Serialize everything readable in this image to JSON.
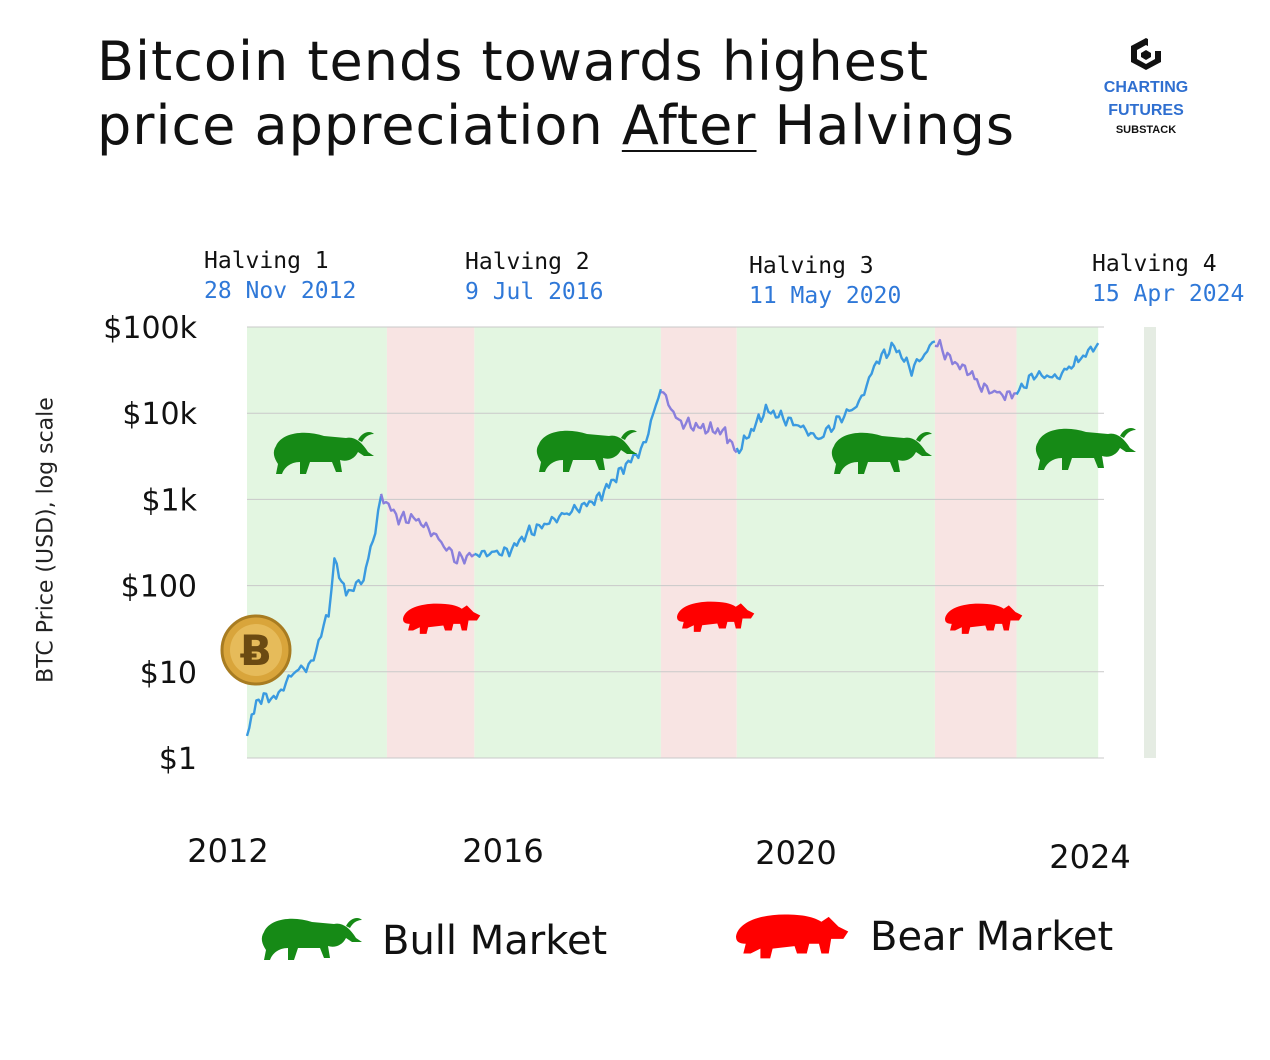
{
  "title": {
    "line1": "Bitcoin tends towards highest",
    "line2_pre": "price appreciation ",
    "line2_underlined": "After",
    "line2_post": " Halvings"
  },
  "brand": {
    "line1": "CHARTING",
    "line2": "FUTURES",
    "line3": "SUBSTACK"
  },
  "halvings": [
    {
      "name": "Halving 1",
      "date": "28 Nov 2012"
    },
    {
      "name": "Halving 2",
      "date": "9 Jul 2016"
    },
    {
      "name": "Halving 3",
      "date": "11 May 2020"
    },
    {
      "name": "Halving 4",
      "date": "15 Apr 2024"
    }
  ],
  "legend": {
    "bull": "Bull Market",
    "bear": "Bear Market"
  },
  "colors": {
    "bull_bg": "#e3f6e1",
    "bear_bg": "#f8e4e3",
    "bull_line": "#3a9ae0",
    "bear_line": "#8a7fdc",
    "bull_icon": "#168a16",
    "bear_icon": "#ff0000",
    "halving_date": "#2f78d8"
  },
  "chart_data": {
    "type": "line",
    "ylabel": "BTC Price (USD), log scale",
    "y_scale": "log",
    "ylim": [
      1,
      100000
    ],
    "y_ticks": [
      {
        "value": 1,
        "label": "$1"
      },
      {
        "value": 10,
        "label": "$10"
      },
      {
        "value": 100,
        "label": "$100"
      },
      {
        "value": 1000,
        "label": "$1k"
      },
      {
        "value": 10000,
        "label": "$10k"
      },
      {
        "value": 100000,
        "label": "$100k"
      }
    ],
    "x_ticks": [
      "2012",
      "2016",
      "2020",
      "2024"
    ],
    "grid": true,
    "regions": [
      {
        "type": "bull",
        "from": "2012-01",
        "to": "2014-01"
      },
      {
        "type": "bear",
        "from": "2014-01",
        "to": "2015-04"
      },
      {
        "type": "bull",
        "from": "2015-04",
        "to": "2017-12"
      },
      {
        "type": "bear",
        "from": "2017-12",
        "to": "2019-01"
      },
      {
        "type": "bull",
        "from": "2019-01",
        "to": "2021-11"
      },
      {
        "type": "bear",
        "from": "2021-11",
        "to": "2023-01"
      },
      {
        "type": "bull",
        "from": "2023-01",
        "to": "2024-03"
      }
    ],
    "series": [
      {
        "values": [
          {
            "x": "2012-01",
            "y": 2
          },
          {
            "x": "2012-03",
            "y": 5
          },
          {
            "x": "2012-06",
            "y": 5
          },
          {
            "x": "2012-09",
            "y": 10
          },
          {
            "x": "2012-12",
            "y": 12
          },
          {
            "x": "2013-03",
            "y": 50
          },
          {
            "x": "2013-04",
            "y": 200
          },
          {
            "x": "2013-06",
            "y": 80
          },
          {
            "x": "2013-09",
            "y": 120
          },
          {
            "x": "2013-11",
            "y": 450
          },
          {
            "x": "2013-12",
            "y": 1100
          }
        ]
      },
      {
        "values": [
          {
            "x": "2013-12",
            "y": 1100
          },
          {
            "x": "2014-03",
            "y": 600
          },
          {
            "x": "2014-06",
            "y": 600
          },
          {
            "x": "2014-09",
            "y": 400
          },
          {
            "x": "2015-01",
            "y": 200
          },
          {
            "x": "2015-04",
            "y": 230
          }
        ]
      },
      {
        "values": [
          {
            "x": "2015-04",
            "y": 230
          },
          {
            "x": "2015-10",
            "y": 250
          },
          {
            "x": "2016-01",
            "y": 400
          },
          {
            "x": "2016-07",
            "y": 650
          },
          {
            "x": "2017-01",
            "y": 1000
          },
          {
            "x": "2017-06",
            "y": 2500
          },
          {
            "x": "2017-09",
            "y": 4000
          },
          {
            "x": "2017-12",
            "y": 19000
          }
        ]
      },
      {
        "values": [
          {
            "x": "2017-12",
            "y": 19000
          },
          {
            "x": "2018-03",
            "y": 8000
          },
          {
            "x": "2018-06",
            "y": 7000
          },
          {
            "x": "2018-11",
            "y": 6000
          },
          {
            "x": "2019-01",
            "y": 3500
          }
        ]
      },
      {
        "values": [
          {
            "x": "2019-01",
            "y": 3500
          },
          {
            "x": "2019-06",
            "y": 11000
          },
          {
            "x": "2019-12",
            "y": 7000
          },
          {
            "x": "2020-03",
            "y": 5000
          },
          {
            "x": "2020-07",
            "y": 9000
          },
          {
            "x": "2020-10",
            "y": 13000
          },
          {
            "x": "2021-01",
            "y": 40000
          },
          {
            "x": "2021-04",
            "y": 60000
          },
          {
            "x": "2021-07",
            "y": 32000
          },
          {
            "x": "2021-11",
            "y": 68000
          }
        ]
      },
      {
        "values": [
          {
            "x": "2021-11",
            "y": 68000
          },
          {
            "x": "2022-02",
            "y": 40000
          },
          {
            "x": "2022-05",
            "y": 30000
          },
          {
            "x": "2022-07",
            "y": 20000
          },
          {
            "x": "2022-11",
            "y": 16000
          },
          {
            "x": "2023-01",
            "y": 17000
          }
        ]
      },
      {
        "values": [
          {
            "x": "2023-01",
            "y": 17000
          },
          {
            "x": "2023-04",
            "y": 28000
          },
          {
            "x": "2023-08",
            "y": 26000
          },
          {
            "x": "2023-10",
            "y": 34000
          },
          {
            "x": "2023-12",
            "y": 43000
          },
          {
            "x": "2024-03",
            "y": 65000
          }
        ]
      }
    ]
  }
}
